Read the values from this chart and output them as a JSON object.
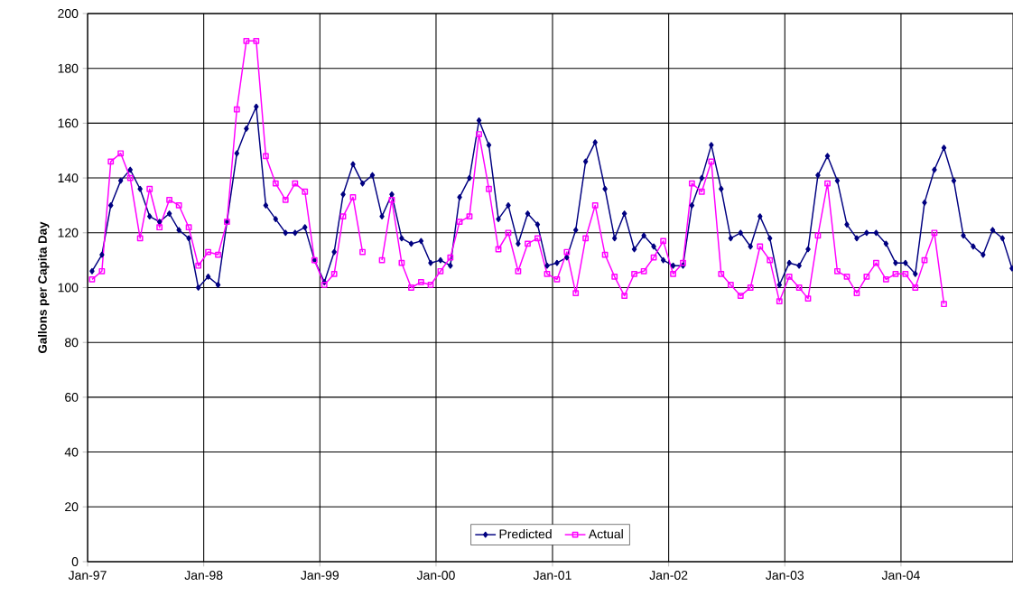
{
  "chart_data": {
    "type": "line",
    "ylabel": "Gallons per Capita Day",
    "x": [
      "1997-01-15",
      "1997-02-15",
      "1997-03-15",
      "1997-04-15",
      "1997-05-15",
      "1997-06-15",
      "1997-07-15",
      "1997-08-15",
      "1997-09-15",
      "1997-10-15",
      "1997-11-15",
      "1997-12-15",
      "1998-01-15",
      "1998-02-15",
      "1998-03-15",
      "1998-04-15",
      "1998-05-15",
      "1998-06-15",
      "1998-07-15",
      "1998-08-15",
      "1998-09-15",
      "1998-10-15",
      "1998-11-15",
      "1998-12-15",
      "1999-01-15",
      "1999-02-15",
      "1999-03-15",
      "1999-04-15",
      "1999-05-15",
      "1999-06-15",
      "1999-07-15",
      "1999-08-15",
      "1999-09-15",
      "1999-10-15",
      "1999-11-15",
      "1999-12-15",
      "2000-01-15",
      "2000-02-15",
      "2000-03-15",
      "2000-04-15",
      "2000-05-15",
      "2000-06-15",
      "2000-07-15",
      "2000-08-15",
      "2000-09-15",
      "2000-10-15",
      "2000-11-15",
      "2000-12-15",
      "2001-01-15",
      "2001-02-15",
      "2001-03-15",
      "2001-04-15",
      "2001-05-15",
      "2001-06-15",
      "2001-07-15",
      "2001-08-15",
      "2001-09-15",
      "2001-10-15",
      "2001-11-15",
      "2001-12-15",
      "2002-01-15",
      "2002-02-15",
      "2002-03-15",
      "2002-04-15",
      "2002-05-15",
      "2002-06-15",
      "2002-07-15",
      "2002-08-15",
      "2002-09-15",
      "2002-10-15",
      "2002-11-15",
      "2002-12-15",
      "2003-01-15",
      "2003-02-15",
      "2003-03-15",
      "2003-04-15",
      "2003-05-15",
      "2003-06-15",
      "2003-07-15",
      "2003-08-15",
      "2003-09-15",
      "2003-10-15",
      "2003-11-15",
      "2003-12-15",
      "2004-01-15",
      "2004-02-15",
      "2004-03-15",
      "2004-04-15",
      "2004-05-15",
      "2004-06-15",
      "2004-07-15",
      "2004-08-15",
      "2004-09-15",
      "2004-10-15",
      "2004-11-15",
      "2004-12-15"
    ],
    "series": [
      {
        "name": "Predicted",
        "color": "#000080",
        "marker": "diamond",
        "values": [
          106,
          112,
          130,
          139,
          143,
          136,
          126,
          124,
          127,
          121,
          118,
          100,
          104,
          101,
          124,
          149,
          158,
          166,
          130,
          125,
          120,
          120,
          122,
          110,
          102,
          113,
          134,
          145,
          138,
          141,
          126,
          134,
          118,
          116,
          117,
          109,
          110,
          108,
          133,
          140,
          161,
          152,
          125,
          130,
          116,
          127,
          123,
          108,
          109,
          111,
          121,
          146,
          153,
          136,
          118,
          127,
          114,
          119,
          115,
          110,
          108,
          108,
          130,
          140,
          152,
          136,
          118,
          120,
          115,
          126,
          118,
          101,
          109,
          108,
          114,
          141,
          148,
          139,
          123,
          118,
          120,
          120,
          116,
          109,
          109,
          105,
          131,
          143,
          151,
          139,
          119,
          115,
          112,
          121,
          118,
          107
        ]
      },
      {
        "name": "Actual",
        "color": "#ff00ff",
        "marker": "square",
        "values": [
          103,
          106,
          146,
          149,
          140,
          118,
          136,
          122,
          132,
          130,
          122,
          108,
          113,
          112,
          124,
          165,
          190,
          190,
          148,
          138,
          132,
          138,
          135,
          110,
          101,
          105,
          126,
          133,
          113,
          null,
          110,
          132,
          109,
          100,
          102,
          101,
          106,
          111,
          124,
          126,
          156,
          136,
          114,
          120,
          106,
          116,
          118,
          105,
          103,
          113,
          98,
          118,
          130,
          112,
          104,
          97,
          105,
          106,
          111,
          117,
          105,
          109,
          138,
          135,
          146,
          105,
          101,
          97,
          100,
          115,
          110,
          95,
          104,
          100,
          96,
          119,
          138,
          106,
          104,
          98,
          104,
          109,
          103,
          105,
          105,
          100,
          110,
          120,
          94,
          null,
          null,
          null,
          null,
          null,
          null,
          null
        ]
      }
    ],
    "xlim": [
      "1997-01-01",
      "2004-12-18"
    ],
    "xticks": [
      {
        "value": "1997-01-01",
        "label": "Jan-97"
      },
      {
        "value": "1998-01-01",
        "label": "Jan-98"
      },
      {
        "value": "1999-01-01",
        "label": "Jan-99"
      },
      {
        "value": "2000-01-01",
        "label": "Jan-00"
      },
      {
        "value": "2001-01-01",
        "label": "Jan-01"
      },
      {
        "value": "2002-01-01",
        "label": "Jan-02"
      },
      {
        "value": "2003-01-01",
        "label": "Jan-03"
      },
      {
        "value": "2004-01-01",
        "label": "Jan-04"
      }
    ],
    "ylim": [
      0,
      200
    ],
    "yticks": [
      0,
      20,
      40,
      60,
      80,
      100,
      120,
      140,
      160,
      180,
      200
    ],
    "grid": true,
    "legend": "bottom"
  }
}
